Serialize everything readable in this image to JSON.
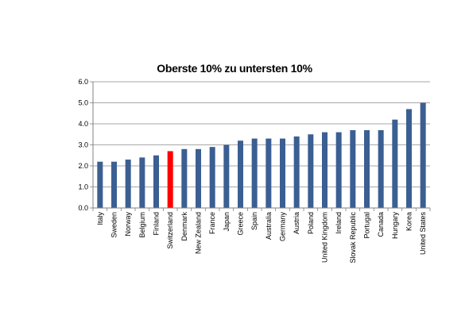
{
  "chart_data": {
    "type": "bar",
    "title": "Oberste 10% zu untersten 10%",
    "xlabel": "",
    "ylabel": "",
    "ylim": [
      0,
      6
    ],
    "yticks": [
      "0.0",
      "1.0",
      "2.0",
      "3.0",
      "4.0",
      "5.0",
      "6.0"
    ],
    "grid": true,
    "legend": "none",
    "bar_color": "#3b5f92",
    "highlight_color": "#ff0000",
    "highlight_category": "Switzerland",
    "categories": [
      "Italy",
      "Sweden",
      "Norway",
      "Belgium",
      "Finland",
      "Switzerland",
      "Denmark",
      "New Zealand",
      "France",
      "Japan",
      "Greece",
      "Spain",
      "Australia",
      "Germany",
      "Austria",
      "Poland",
      "United Kingdom",
      "Ireland",
      "Slovak Republic",
      "Portugal",
      "Canada",
      "Hungary",
      "Korea",
      "United States"
    ],
    "values": [
      2.2,
      2.2,
      2.3,
      2.4,
      2.5,
      2.7,
      2.8,
      2.8,
      2.9,
      3.0,
      3.2,
      3.3,
      3.3,
      3.3,
      3.4,
      3.5,
      3.6,
      3.6,
      3.7,
      3.7,
      3.7,
      4.2,
      4.7,
      5.0
    ]
  }
}
